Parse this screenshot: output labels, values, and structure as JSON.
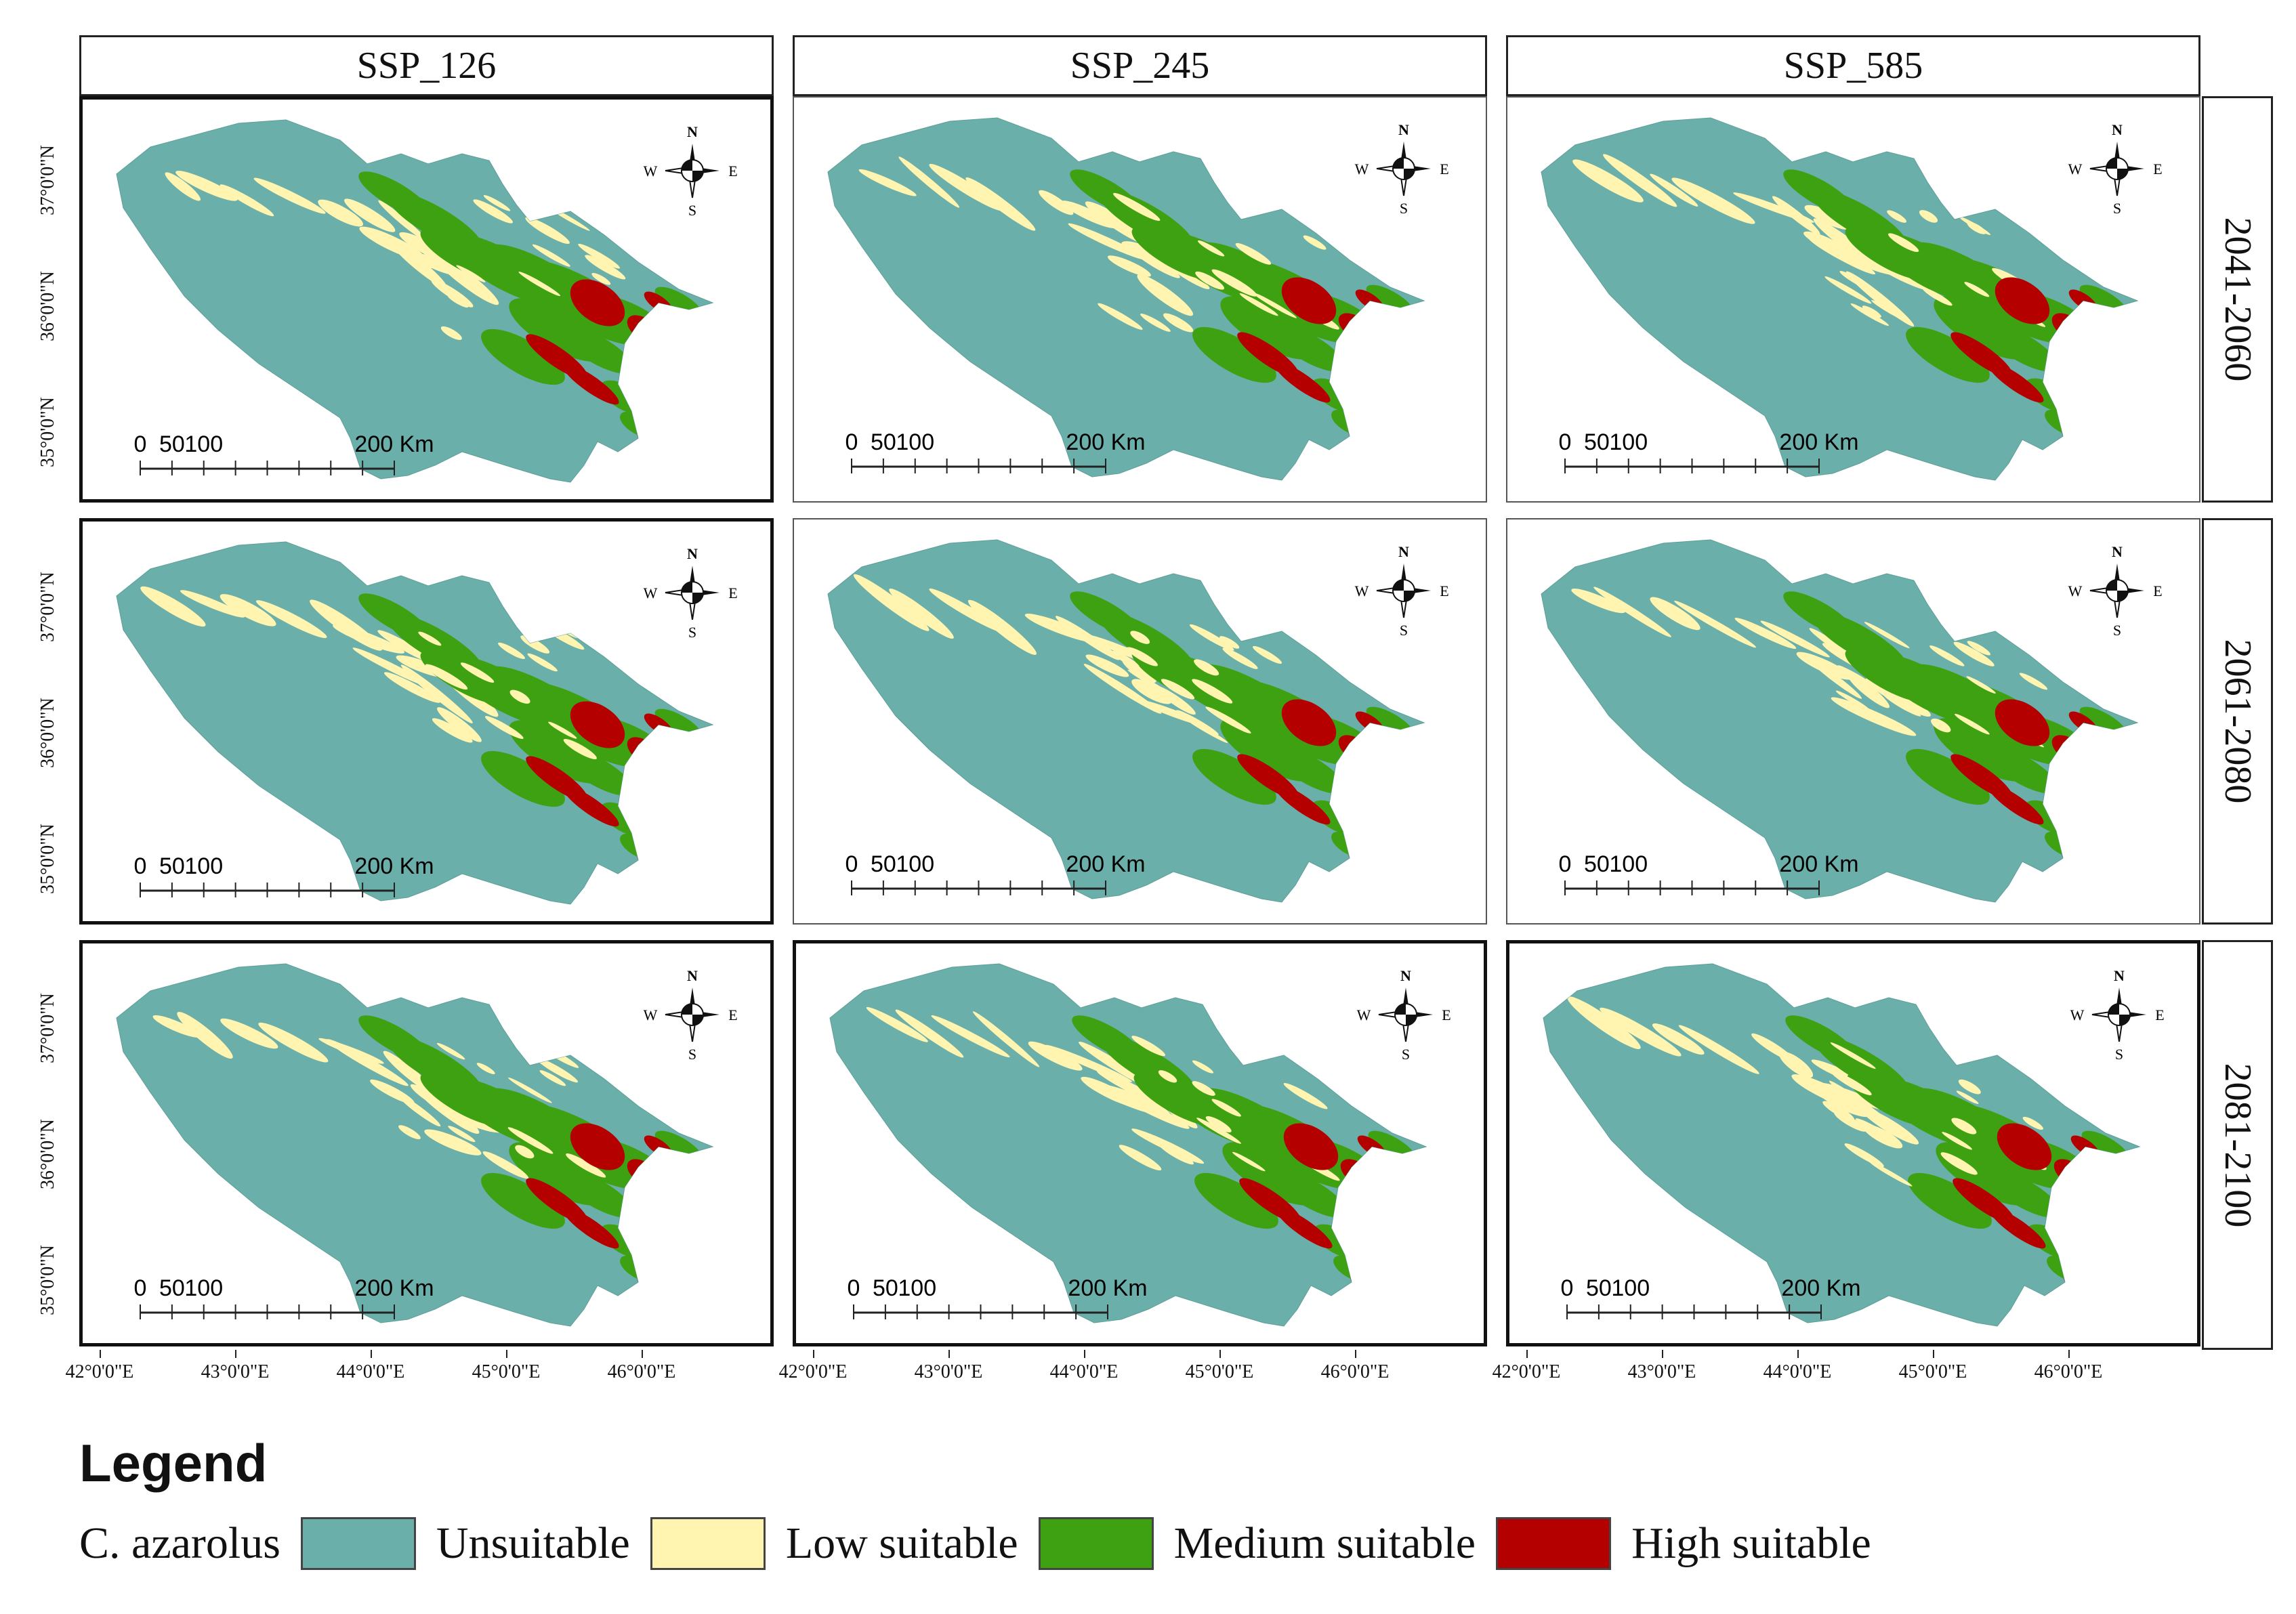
{
  "columns": [
    "SSP_126",
    "SSP_245",
    "SSP_585"
  ],
  "rows": [
    "2041-2060",
    "2061-2080",
    "2081-2100"
  ],
  "latitude_labels": [
    "37°0'0\"N",
    "36°0'0\"N",
    "35°0'0\"N"
  ],
  "longitude_labels": [
    "42°0'0\"E",
    "43°0'0\"E",
    "44°0'0\"E",
    "45°0'0\"E",
    "46°0'0\"E"
  ],
  "compass": {
    "n": "N",
    "s": "S",
    "e": "E",
    "w": "W"
  },
  "scale_bar": {
    "ticks": [
      "0",
      "50",
      "100",
      "200 Km"
    ]
  },
  "legend": {
    "title": "Legend",
    "species": "C. azarolus",
    "classes": [
      {
        "label": "Unsuitable",
        "color": "#6aafa9"
      },
      {
        "label": "Low suitable",
        "color": "#fff4b0"
      },
      {
        "label": "Medium suitable",
        "color": "#3da112"
      },
      {
        "label": "High suitable",
        "color": "#b50000"
      }
    ]
  },
  "colors": {
    "unsuitable": "#6aafa9",
    "low": "#fff4b0",
    "medium": "#3da112",
    "high": "#b50000"
  }
}
